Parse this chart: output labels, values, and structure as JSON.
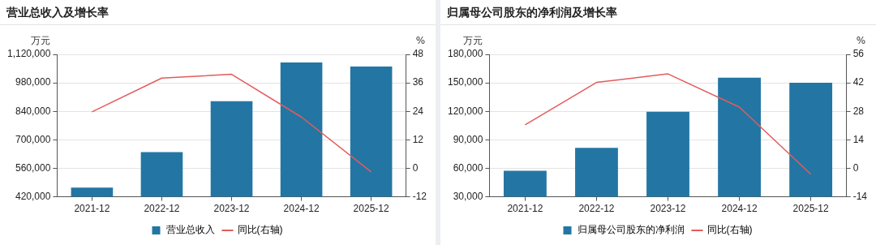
{
  "chart_data": [
    {
      "type": "bar",
      "title": "营业总收入及增长率",
      "ylabel": "万元",
      "y2label": "%",
      "categories": [
        "2021-12",
        "2022-12",
        "2023-12",
        "2024-12",
        "2025-12"
      ],
      "series": [
        {
          "name": "营业总收入",
          "color": "#2376a3",
          "values": [
            465000,
            640000,
            890000,
            1080000,
            1060000
          ]
        },
        {
          "name": "同比(右轴)",
          "type": "line",
          "axis": "y2",
          "color": "#e45b5b",
          "values": [
            23.8,
            38,
            39.6,
            21.6,
            -1.5
          ]
        }
      ],
      "ylim": [
        420000,
        1120000
      ],
      "yticks": [
        {
          "value": 420000,
          "label": "420,000"
        },
        {
          "value": 560000,
          "label": "560,000"
        },
        {
          "value": 700000,
          "label": "700,000"
        },
        {
          "value": 840000,
          "label": "840,000"
        },
        {
          "value": 980000,
          "label": "980,000"
        },
        {
          "value": 1120000,
          "label": "1,120,000"
        }
      ],
      "y2lim": [
        -12,
        48
      ],
      "y2ticks": [
        -12,
        0,
        12,
        24,
        36,
        48
      ],
      "grid": "y",
      "legend": "bottom",
      "marker": "none",
      "line_style": "solid"
    },
    {
      "type": "bar",
      "title": "归属母公司股东的净利润及增长率",
      "ylabel": "万元",
      "y2label": "%",
      "categories": [
        "2021-12",
        "2022-12",
        "2023-12",
        "2024-12",
        "2025-12"
      ],
      "series": [
        {
          "name": "归属母公司股东的净利润",
          "color": "#2376a3",
          "values": [
            57500,
            81500,
            119500,
            155500,
            150000
          ]
        },
        {
          "name": "同比(右轴)",
          "type": "line",
          "axis": "y2",
          "color": "#e45b5b",
          "values": [
            21.4,
            42.2,
            46.4,
            30.1,
            -2.9
          ]
        }
      ],
      "ylim": [
        30000,
        180000
      ],
      "yticks": [
        {
          "value": 30000,
          "label": "30,000"
        },
        {
          "value": 60000,
          "label": "60,000"
        },
        {
          "value": 90000,
          "label": "90,000"
        },
        {
          "value": 120000,
          "label": "120,000"
        },
        {
          "value": 150000,
          "label": "150,000"
        },
        {
          "value": 180000,
          "label": "180,000"
        }
      ],
      "y2lim": [
        -14,
        56
      ],
      "y2ticks": [
        -14,
        0,
        14,
        28,
        42,
        56
      ],
      "grid": "y",
      "legend": "bottom",
      "marker": "none",
      "line_style": "solid"
    }
  ]
}
